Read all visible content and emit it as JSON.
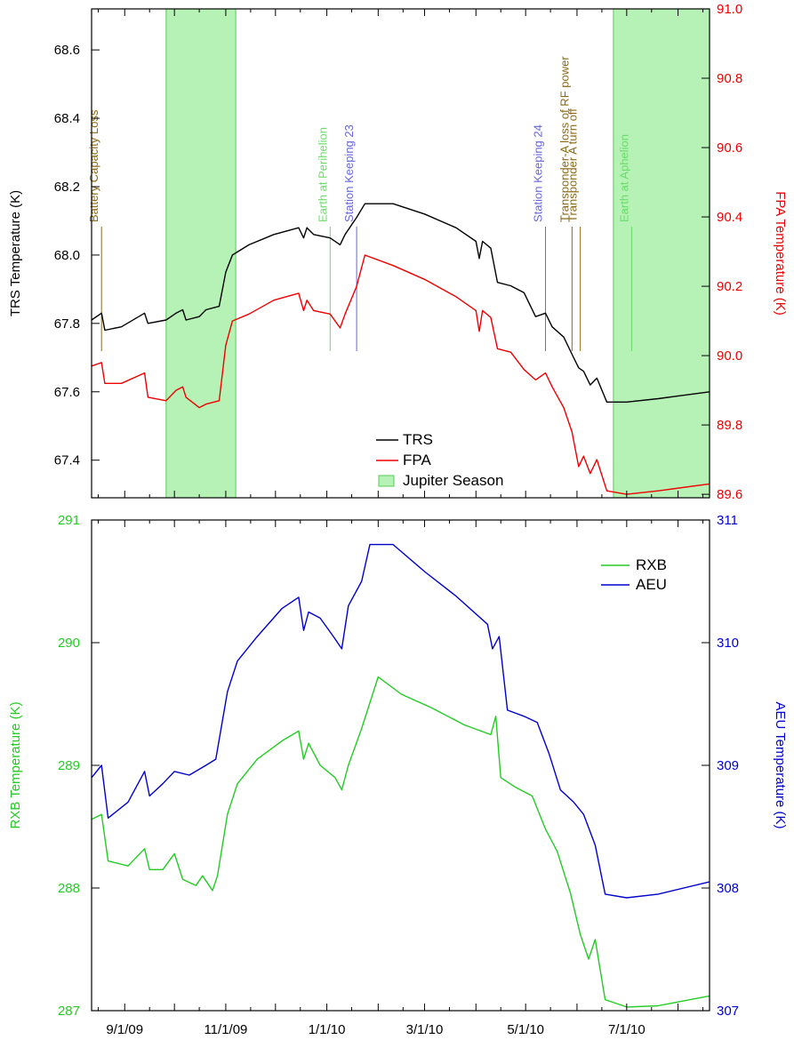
{
  "chart_data": [
    {
      "type": "line",
      "xlabel": "",
      "ylabel": "TRS Temperature (K)",
      "y2label": "FPA Temperature (K)",
      "ylim": [
        67.29,
        68.72
      ],
      "y2lim": [
        89.59,
        91.0
      ],
      "yticks": [
        67.4,
        67.6,
        67.8,
        68.0,
        68.2,
        68.4,
        68.6
      ],
      "y2ticks": [
        89.6,
        89.8,
        90.0,
        90.2,
        90.4,
        90.6,
        90.8,
        91.0
      ],
      "legend_position": "bottom-center",
      "shaded_regions": [
        {
          "name": "Jupiter Season",
          "from": "2009-09-26",
          "to": "2009-11-07",
          "color": "#b6f2b6"
        },
        {
          "name": "Jupiter Season",
          "from": "2010-06-23",
          "to": "2010-08-20",
          "color": "#b6f2b6"
        }
      ],
      "annotations": [
        {
          "label": "Battery Capacity Loss",
          "date": "2009-08-18",
          "color": "#8b6914"
        },
        {
          "label": "Earth at Perihelion",
          "date": "2010-01-03",
          "color": "#66dd66"
        },
        {
          "label": "Station Keeping 23",
          "date": "2010-01-19",
          "color": "#6666dd"
        },
        {
          "label": "Station Keeping 24",
          "date": "2010-05-13",
          "color": "#6666dd"
        },
        {
          "label": "Transponder-A loss of RF power",
          "date": "2010-05-29",
          "color": "#8b6914"
        },
        {
          "label": "Transponder A turn off",
          "date": "2010-06-03",
          "color": "#8b6914"
        },
        {
          "label": "Earth at Aphelion",
          "date": "2010-07-04",
          "color": "#66dd66"
        }
      ],
      "series": [
        {
          "name": "TRS",
          "axis": "left",
          "color": "#000000",
          "points": [
            [
              "2009-08-12",
              67.81
            ],
            [
              "2009-08-18",
              67.83
            ],
            [
              "2009-08-20",
              67.78
            ],
            [
              "2009-08-30",
              67.79
            ],
            [
              "2009-09-13",
              67.83
            ],
            [
              "2009-09-15",
              67.8
            ],
            [
              "2009-09-26",
              67.81
            ],
            [
              "2009-10-02",
              67.83
            ],
            [
              "2009-10-06",
              67.84
            ],
            [
              "2009-10-08",
              67.81
            ],
            [
              "2009-10-16",
              67.82
            ],
            [
              "2009-10-20",
              67.84
            ],
            [
              "2009-10-28",
              67.85
            ],
            [
              "2009-11-01",
              67.95
            ],
            [
              "2009-11-05",
              68.0
            ],
            [
              "2009-11-15",
              68.03
            ],
            [
              "2009-11-30",
              68.06
            ],
            [
              "2009-12-15",
              68.08
            ],
            [
              "2009-12-18",
              68.05
            ],
            [
              "2009-12-20",
              68.08
            ],
            [
              "2009-12-24",
              68.06
            ],
            [
              "2010-01-03",
              68.05
            ],
            [
              "2010-01-09",
              68.03
            ],
            [
              "2010-01-12",
              68.06
            ],
            [
              "2010-01-19",
              68.11
            ],
            [
              "2010-01-24",
              68.15
            ],
            [
              "2010-02-10",
              68.15
            ],
            [
              "2010-03-01",
              68.12
            ],
            [
              "2010-03-20",
              68.08
            ],
            [
              "2010-04-01",
              68.04
            ],
            [
              "2010-04-03",
              67.99
            ],
            [
              "2010-04-05",
              68.04
            ],
            [
              "2010-04-10",
              68.02
            ],
            [
              "2010-04-14",
              67.92
            ],
            [
              "2010-04-22",
              67.91
            ],
            [
              "2010-04-30",
              67.89
            ],
            [
              "2010-05-07",
              67.82
            ],
            [
              "2010-05-13",
              67.83
            ],
            [
              "2010-05-17",
              67.79
            ],
            [
              "2010-05-24",
              67.76
            ],
            [
              "2010-05-29",
              67.71
            ],
            [
              "2010-06-02",
              67.67
            ],
            [
              "2010-06-05",
              67.66
            ],
            [
              "2010-06-09",
              67.62
            ],
            [
              "2010-06-13",
              67.64
            ],
            [
              "2010-06-19",
              67.57
            ],
            [
              "2010-07-01",
              67.57
            ],
            [
              "2010-07-20",
              67.58
            ],
            [
              "2010-08-20",
              67.6
            ]
          ]
        },
        {
          "name": "FPA",
          "axis": "right",
          "color": "#ee0000",
          "points": [
            [
              "2009-08-12",
              89.97
            ],
            [
              "2009-08-18",
              89.98
            ],
            [
              "2009-08-20",
              89.92
            ],
            [
              "2009-08-30",
              89.92
            ],
            [
              "2009-09-13",
              89.95
            ],
            [
              "2009-09-15",
              89.88
            ],
            [
              "2009-09-26",
              89.87
            ],
            [
              "2009-10-02",
              89.9
            ],
            [
              "2009-10-06",
              89.91
            ],
            [
              "2009-10-08",
              89.88
            ],
            [
              "2009-10-16",
              89.85
            ],
            [
              "2009-10-20",
              89.86
            ],
            [
              "2009-10-28",
              89.87
            ],
            [
              "2009-11-01",
              90.03
            ],
            [
              "2009-11-05",
              90.1
            ],
            [
              "2009-11-15",
              90.12
            ],
            [
              "2009-11-30",
              90.16
            ],
            [
              "2009-12-15",
              90.18
            ],
            [
              "2009-12-18",
              90.13
            ],
            [
              "2009-12-20",
              90.16
            ],
            [
              "2009-12-24",
              90.13
            ],
            [
              "2010-01-03",
              90.12
            ],
            [
              "2010-01-09",
              90.08
            ],
            [
              "2010-01-12",
              90.12
            ],
            [
              "2010-01-19",
              90.2
            ],
            [
              "2010-01-24",
              90.29
            ],
            [
              "2010-02-10",
              90.26
            ],
            [
              "2010-03-01",
              90.22
            ],
            [
              "2010-03-20",
              90.17
            ],
            [
              "2010-04-01",
              90.13
            ],
            [
              "2010-04-03",
              90.07
            ],
            [
              "2010-04-05",
              90.13
            ],
            [
              "2010-04-10",
              90.11
            ],
            [
              "2010-04-14",
              90.02
            ],
            [
              "2010-04-22",
              90.01
            ],
            [
              "2010-04-30",
              89.96
            ],
            [
              "2010-05-07",
              89.93
            ],
            [
              "2010-05-13",
              89.95
            ],
            [
              "2010-05-17",
              89.91
            ],
            [
              "2010-05-24",
              89.85
            ],
            [
              "2010-05-29",
              89.78
            ],
            [
              "2010-06-02",
              89.68
            ],
            [
              "2010-06-05",
              89.71
            ],
            [
              "2010-06-09",
              89.66
            ],
            [
              "2010-06-13",
              89.7
            ],
            [
              "2010-06-19",
              89.61
            ],
            [
              "2010-07-01",
              89.6
            ],
            [
              "2010-07-20",
              89.61
            ],
            [
              "2010-08-20",
              89.63
            ]
          ]
        }
      ]
    },
    {
      "type": "line",
      "xlabel": "",
      "ylabel": "RXB Temperature (K)",
      "y2label": "AEU Temperature (K)",
      "ylim": [
        287.0,
        291.0
      ],
      "y2lim": [
        307.0,
        311.0
      ],
      "yticks": [
        287,
        288,
        289,
        290,
        291
      ],
      "y2ticks": [
        307,
        308,
        309,
        310,
        311
      ],
      "xticks": [
        "9/1/09",
        "11/1/09",
        "1/1/10",
        "3/1/10",
        "5/1/10",
        "7/1/10"
      ],
      "xtick_dates": [
        "2009-09-01",
        "2009-11-01",
        "2010-01-01",
        "2010-03-01",
        "2010-05-01",
        "2010-07-01"
      ],
      "xlim": [
        "2009-08-12",
        "2010-08-20"
      ],
      "legend_position": "top-right",
      "series": [
        {
          "name": "RXB",
          "axis": "left",
          "color": "#22cc22",
          "points": [
            [
              "2009-08-12",
              288.56
            ],
            [
              "2009-08-18",
              288.6
            ],
            [
              "2009-08-22",
              288.22
            ],
            [
              "2009-09-03",
              288.18
            ],
            [
              "2009-09-13",
              288.32
            ],
            [
              "2009-09-16",
              288.15
            ],
            [
              "2009-09-24",
              288.15
            ],
            [
              "2009-10-01",
              288.28
            ],
            [
              "2009-10-06",
              288.07
            ],
            [
              "2009-10-14",
              288.02
            ],
            [
              "2009-10-18",
              288.1
            ],
            [
              "2009-10-24",
              287.98
            ],
            [
              "2009-10-27",
              288.1
            ],
            [
              "2009-11-02",
              288.6
            ],
            [
              "2009-11-08",
              288.85
            ],
            [
              "2009-11-20",
              289.05
            ],
            [
              "2009-12-05",
              289.2
            ],
            [
              "2009-12-15",
              289.28
            ],
            [
              "2009-12-18",
              289.05
            ],
            [
              "2009-12-21",
              289.18
            ],
            [
              "2009-12-28",
              289.0
            ],
            [
              "2010-01-06",
              288.9
            ],
            [
              "2010-01-10",
              288.8
            ],
            [
              "2010-01-14",
              289.0
            ],
            [
              "2010-01-22",
              289.3
            ],
            [
              "2010-02-01",
              289.72
            ],
            [
              "2010-02-15",
              289.58
            ],
            [
              "2010-03-05",
              289.47
            ],
            [
              "2010-03-25",
              289.33
            ],
            [
              "2010-04-10",
              289.25
            ],
            [
              "2010-04-13",
              289.4
            ],
            [
              "2010-04-16",
              288.9
            ],
            [
              "2010-04-25",
              288.82
            ],
            [
              "2010-05-05",
              288.75
            ],
            [
              "2010-05-13",
              288.48
            ],
            [
              "2010-05-20",
              288.3
            ],
            [
              "2010-05-28",
              287.96
            ],
            [
              "2010-06-03",
              287.62
            ],
            [
              "2010-06-08",
              287.42
            ],
            [
              "2010-06-12",
              287.58
            ],
            [
              "2010-06-18",
              287.09
            ],
            [
              "2010-07-01",
              287.03
            ],
            [
              "2010-07-20",
              287.04
            ],
            [
              "2010-08-20",
              287.12
            ]
          ]
        },
        {
          "name": "AEU",
          "axis": "right",
          "color": "#0000cc",
          "points": [
            [
              "2009-08-12",
              308.9
            ],
            [
              "2009-08-18",
              309.0
            ],
            [
              "2009-08-22",
              308.57
            ],
            [
              "2009-09-03",
              308.7
            ],
            [
              "2009-09-13",
              308.95
            ],
            [
              "2009-09-16",
              308.75
            ],
            [
              "2009-09-24",
              308.85
            ],
            [
              "2009-10-01",
              308.95
            ],
            [
              "2009-10-10",
              308.92
            ],
            [
              "2009-10-20",
              309.0
            ],
            [
              "2009-10-26",
              309.05
            ],
            [
              "2009-11-02",
              309.6
            ],
            [
              "2009-11-08",
              309.85
            ],
            [
              "2009-11-20",
              310.05
            ],
            [
              "2009-12-05",
              310.28
            ],
            [
              "2009-12-15",
              310.37
            ],
            [
              "2009-12-18",
              310.1
            ],
            [
              "2009-12-21",
              310.25
            ],
            [
              "2009-12-28",
              310.2
            ],
            [
              "2010-01-05",
              310.05
            ],
            [
              "2010-01-10",
              309.95
            ],
            [
              "2010-01-14",
              310.3
            ],
            [
              "2010-01-22",
              310.5
            ],
            [
              "2010-01-27",
              310.8
            ],
            [
              "2010-02-10",
              310.8
            ],
            [
              "2010-03-01",
              310.58
            ],
            [
              "2010-03-20",
              310.38
            ],
            [
              "2010-04-08",
              310.15
            ],
            [
              "2010-04-11",
              309.95
            ],
            [
              "2010-04-15",
              310.05
            ],
            [
              "2010-04-20",
              309.45
            ],
            [
              "2010-04-30",
              309.4
            ],
            [
              "2010-05-08",
              309.35
            ],
            [
              "2010-05-15",
              309.1
            ],
            [
              "2010-05-22",
              308.8
            ],
            [
              "2010-05-30",
              308.7
            ],
            [
              "2010-06-05",
              308.6
            ],
            [
              "2010-06-12",
              308.35
            ],
            [
              "2010-06-18",
              307.95
            ],
            [
              "2010-07-01",
              307.92
            ],
            [
              "2010-07-20",
              307.95
            ],
            [
              "2010-08-20",
              308.05
            ]
          ]
        }
      ]
    }
  ]
}
